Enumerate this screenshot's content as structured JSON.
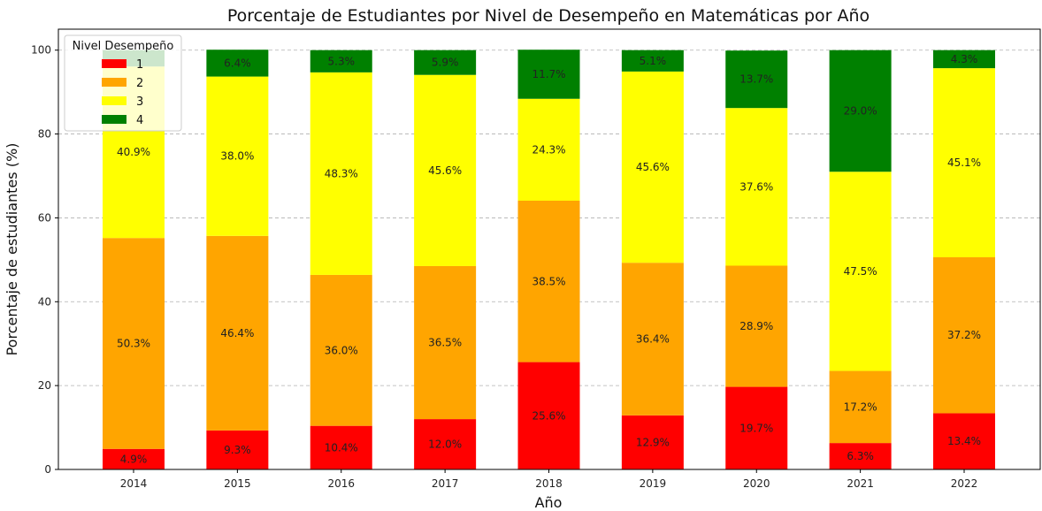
{
  "chart_data": {
    "type": "bar",
    "stacked": true,
    "title": "Porcentaje de Estudiantes por Nivel de Desempeño en Matemáticas por Año",
    "xlabel": "Año",
    "ylabel": "Porcentaje de estudiantes (%)",
    "ylim": [
      0,
      105
    ],
    "yticks": [
      0,
      20,
      40,
      60,
      80,
      100
    ],
    "grid": "y-dashed",
    "categories": [
      "2014",
      "2015",
      "2016",
      "2017",
      "2018",
      "2019",
      "2020",
      "2021",
      "2022"
    ],
    "legend": {
      "title": "Nivel Desempeño",
      "placement": "top-left"
    },
    "series": [
      {
        "name": "1",
        "color": "#ff0000",
        "values": [
          4.9,
          9.3,
          10.4,
          12.0,
          25.6,
          12.9,
          19.7,
          6.3,
          13.4
        ],
        "labels": [
          "4.9%",
          "9.3%",
          "10.4%",
          "12.0%",
          "25.6%",
          "12.9%",
          "19.7%",
          "6.3%",
          "13.4%"
        ]
      },
      {
        "name": "2",
        "color": "#ffa500",
        "values": [
          50.3,
          46.4,
          36.0,
          36.5,
          38.5,
          36.4,
          28.9,
          17.2,
          37.2
        ],
        "labels": [
          "50.3%",
          "46.4%",
          "36.0%",
          "36.5%",
          "38.5%",
          "36.4%",
          "28.9%",
          "17.2%",
          "37.2%"
        ]
      },
      {
        "name": "3",
        "color": "#ffff00",
        "values": [
          40.9,
          38.0,
          48.3,
          45.6,
          24.3,
          45.6,
          37.6,
          47.5,
          45.1
        ],
        "labels": [
          "40.9%",
          "38.0%",
          "48.3%",
          "45.6%",
          "24.3%",
          "45.6%",
          "37.6%",
          "47.5%",
          "45.1%"
        ]
      },
      {
        "name": "4",
        "color": "#008000",
        "values": [
          3.9,
          6.4,
          5.3,
          5.9,
          11.7,
          5.1,
          13.7,
          29.0,
          4.3
        ],
        "labels": [
          "",
          "6.4%",
          "5.3%",
          "5.9%",
          "11.7%",
          "5.1%",
          "13.7%",
          "29.0%",
          "4.3%"
        ]
      }
    ]
  }
}
